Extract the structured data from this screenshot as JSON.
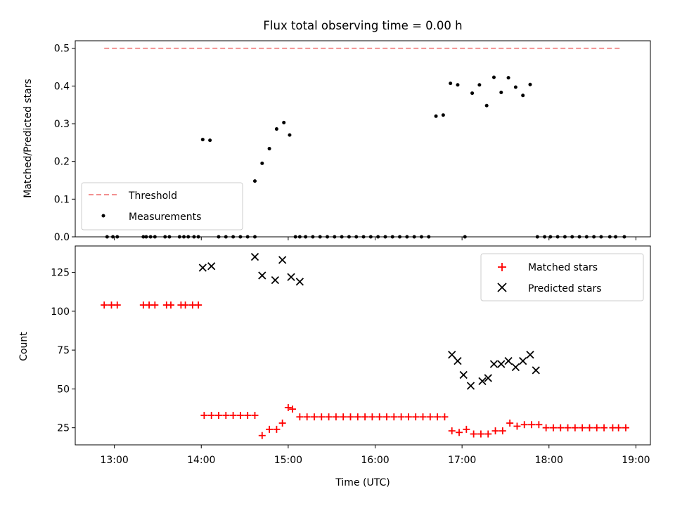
{
  "chart_data": [
    {
      "type": "scatter",
      "title": "Flux total observing time = 0.00 h",
      "xlabel": "",
      "ylabel": "Matched/Predicted stars",
      "xlim": [
        "12:33",
        "19:10"
      ],
      "ylim": [
        0,
        0.52
      ],
      "yticks": [
        0.0,
        0.1,
        0.2,
        0.3,
        0.4,
        0.5
      ],
      "ytick_labels": [
        "0.0",
        "0.1",
        "0.2",
        "0.3",
        "0.4",
        "0.5"
      ],
      "xticks": [
        "13:00",
        "14:00",
        "15:00",
        "16:00",
        "17:00",
        "18:00",
        "19:00"
      ],
      "legend": {
        "position": "lower-left",
        "entries": [
          "Threshold",
          "Measurements"
        ]
      },
      "threshold": {
        "name": "Threshold",
        "y": 0.5,
        "x_start": "12:53",
        "x_end": "18:50",
        "color": "#f08080"
      },
      "series": [
        {
          "name": "Measurements",
          "color": "#000000",
          "marker": "dot",
          "x": [
            "12:55",
            "12:59",
            "13:02",
            "13:20",
            "13:22",
            "13:25",
            "13:28",
            "13:35",
            "13:38",
            "13:45",
            "13:48",
            "13:51",
            "13:55",
            "13:58",
            "14:01",
            "14:06",
            "14:12",
            "14:17",
            "14:22",
            "14:27",
            "14:32",
            "14:37",
            "14:42",
            "14:37",
            "14:47",
            "14:52",
            "14:57",
            "15:01",
            "15:05",
            "15:08",
            "15:12",
            "15:17",
            "15:22",
            "15:27",
            "15:32",
            "15:37",
            "15:42",
            "15:47",
            "15:52",
            "15:57",
            "16:02",
            "16:07",
            "16:12",
            "16:17",
            "16:22",
            "16:27",
            "16:32",
            "16:37",
            "16:42",
            "16:47",
            "16:52",
            "16:57",
            "17:02",
            "17:07",
            "17:12",
            "17:17",
            "17:22",
            "17:27",
            "17:32",
            "17:37",
            "17:42",
            "17:47",
            "17:52",
            "17:57",
            "18:01",
            "18:06",
            "18:11",
            "18:16",
            "18:21",
            "18:26",
            "18:31",
            "18:36",
            "18:42",
            "18:46",
            "18:52"
          ],
          "y": [
            0,
            0,
            0,
            0,
            0,
            0,
            0,
            0,
            0,
            0,
            0,
            0,
            0,
            0,
            0.258,
            0.256,
            0,
            0,
            0,
            0,
            0,
            0.148,
            0.195,
            0,
            0.234,
            0.286,
            0.303,
            0.27,
            0,
            0,
            0,
            0,
            0,
            0,
            0,
            0,
            0,
            0,
            0,
            0,
            0,
            0,
            0,
            0,
            0,
            0,
            0,
            0,
            0.32,
            0.323,
            0.407,
            0.403,
            0,
            0.381,
            0.403,
            0.348,
            0.423,
            0.383,
            0.422,
            0.397,
            0.375,
            0.404,
            0,
            0,
            0,
            0,
            0,
            0,
            0,
            0,
            0,
            0,
            0,
            0,
            0
          ]
        }
      ]
    },
    {
      "type": "scatter",
      "title": "",
      "xlabel": "Time (UTC)",
      "ylabel": "Count",
      "xlim": [
        "12:33",
        "19:10"
      ],
      "ylim": [
        14,
        142
      ],
      "yticks": [
        25,
        50,
        75,
        100,
        125
      ],
      "ytick_labels": [
        "25",
        "50",
        "75",
        "100",
        "125"
      ],
      "xticks": [
        "13:00",
        "14:00",
        "15:00",
        "16:00",
        "17:00",
        "18:00",
        "19:00"
      ],
      "legend": {
        "position": "top-right",
        "entries": [
          "Matched stars",
          "Predicted stars"
        ]
      },
      "series": [
        {
          "name": "Matched stars",
          "color": "#ff0000",
          "marker": "plus",
          "x": [
            "12:53",
            "12:58",
            "13:02",
            "13:20",
            "13:24",
            "13:28",
            "13:36",
            "13:39",
            "13:46",
            "13:49",
            "13:54",
            "13:58",
            "14:02",
            "14:07",
            "14:12",
            "14:17",
            "14:22",
            "14:27",
            "14:32",
            "14:37",
            "14:42",
            "14:47",
            "14:52",
            "14:56",
            "15:00",
            "15:03",
            "15:08",
            "15:13",
            "15:18",
            "15:23",
            "15:28",
            "15:33",
            "15:38",
            "15:43",
            "15:48",
            "15:53",
            "15:58",
            "16:03",
            "16:08",
            "16:13",
            "16:18",
            "16:23",
            "16:28",
            "16:33",
            "16:38",
            "16:43",
            "16:48",
            "16:53",
            "16:58",
            "17:03",
            "17:08",
            "17:13",
            "17:18",
            "17:23",
            "17:28",
            "17:33",
            "17:38",
            "17:43",
            "17:48",
            "17:53",
            "17:58",
            "18:03",
            "18:08",
            "18:13",
            "18:18",
            "18:23",
            "18:28",
            "18:33",
            "18:38",
            "18:44",
            "18:48",
            "18:53"
          ],
          "y": [
            104,
            104,
            104,
            104,
            104,
            104,
            104,
            104,
            104,
            104,
            104,
            104,
            33,
            33,
            33,
            33,
            33,
            33,
            33,
            33,
            20,
            24,
            24,
            28,
            38,
            37,
            32,
            32,
            32,
            32,
            32,
            32,
            32,
            32,
            32,
            32,
            32,
            32,
            32,
            32,
            32,
            32,
            32,
            32,
            32,
            32,
            32,
            23,
            22,
            24,
            21,
            21,
            21,
            23,
            23,
            28,
            26,
            27,
            27,
            27,
            25,
            25,
            25,
            25,
            25,
            25,
            25,
            25,
            25,
            25,
            25,
            25
          ]
        },
        {
          "name": "Predicted stars",
          "color": "#000000",
          "marker": "x",
          "x": [
            "14:01",
            "14:07",
            "14:37",
            "14:42",
            "14:51",
            "14:56",
            "15:02",
            "15:08",
            "16:53",
            "16:57",
            "17:01",
            "17:06",
            "17:14",
            "17:18",
            "17:22",
            "17:27",
            "17:32",
            "17:37",
            "17:42",
            "17:47",
            "17:51"
          ],
          "y": [
            128,
            129,
            135,
            123,
            120,
            133,
            122,
            119,
            72,
            68,
            59,
            52,
            55,
            57,
            66,
            66,
            68,
            64,
            68,
            72,
            62
          ]
        }
      ]
    }
  ]
}
